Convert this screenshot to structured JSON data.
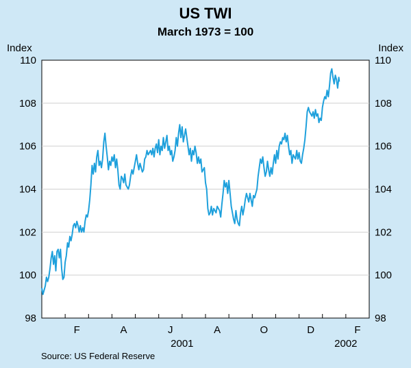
{
  "chart_data": {
    "type": "line",
    "title": "US TWI",
    "subtitle": "March 1973 = 100",
    "ylabel_left": "Index",
    "ylabel_right": "Index",
    "ylim": [
      98,
      110
    ],
    "yticks": [
      98,
      100,
      102,
      104,
      106,
      108,
      110
    ],
    "xlim": [
      0,
      14
    ],
    "months": [
      {
        "label": "F",
        "x": 1.5
      },
      {
        "label": "A",
        "x": 3.5
      },
      {
        "label": "J",
        "x": 5.5
      },
      {
        "label": "A",
        "x": 7.5
      },
      {
        "label": "O",
        "x": 9.5
      },
      {
        "label": "D",
        "x": 11.5
      },
      {
        "label": "F",
        "x": 13.5
      }
    ],
    "years": [
      {
        "label": "2001",
        "x": 6.0
      },
      {
        "label": "2002",
        "x": 13.0
      }
    ],
    "source": "Source: US Federal Reserve",
    "series": [
      {
        "name": "US TWI",
        "color": "#1ea0dc",
        "points": [
          [
            0.0,
            99.4
          ],
          [
            0.05,
            99.1
          ],
          [
            0.1,
            99.3
          ],
          [
            0.15,
            99.5
          ],
          [
            0.2,
            99.9
          ],
          [
            0.25,
            99.7
          ],
          [
            0.3,
            99.9
          ],
          [
            0.35,
            100.3
          ],
          [
            0.4,
            100.8
          ],
          [
            0.45,
            101.1
          ],
          [
            0.5,
            100.5
          ],
          [
            0.55,
            100.9
          ],
          [
            0.6,
            100.2
          ],
          [
            0.65,
            101.1
          ],
          [
            0.7,
            101.2
          ],
          [
            0.75,
            100.8
          ],
          [
            0.8,
            101.2
          ],
          [
            0.85,
            100.3
          ],
          [
            0.9,
            99.8
          ],
          [
            0.95,
            99.9
          ],
          [
            1.0,
            100.6
          ],
          [
            1.05,
            100.9
          ],
          [
            1.1,
            101.5
          ],
          [
            1.15,
            101.3
          ],
          [
            1.2,
            101.8
          ],
          [
            1.25,
            101.6
          ],
          [
            1.3,
            101.9
          ],
          [
            1.35,
            102.3
          ],
          [
            1.4,
            102.4
          ],
          [
            1.45,
            102.2
          ],
          [
            1.5,
            102.5
          ],
          [
            1.55,
            102.3
          ],
          [
            1.6,
            102.0
          ],
          [
            1.65,
            102.3
          ],
          [
            1.7,
            102.0
          ],
          [
            1.75,
            102.2
          ],
          [
            1.8,
            102.0
          ],
          [
            1.85,
            102.5
          ],
          [
            1.9,
            102.8
          ],
          [
            1.95,
            102.7
          ],
          [
            2.0,
            103.0
          ],
          [
            2.05,
            103.5
          ],
          [
            2.1,
            104.2
          ],
          [
            2.15,
            105.1
          ],
          [
            2.2,
            104.7
          ],
          [
            2.25,
            105.2
          ],
          [
            2.3,
            104.8
          ],
          [
            2.35,
            105.5
          ],
          [
            2.4,
            105.8
          ],
          [
            2.45,
            105.1
          ],
          [
            2.5,
            105.3
          ],
          [
            2.55,
            105.0
          ],
          [
            2.6,
            105.4
          ],
          [
            2.65,
            106.2
          ],
          [
            2.7,
            106.6
          ],
          [
            2.75,
            106.0
          ],
          [
            2.8,
            105.5
          ],
          [
            2.85,
            104.9
          ],
          [
            2.9,
            105.3
          ],
          [
            2.95,
            105.1
          ],
          [
            3.0,
            105.5
          ],
          [
            3.05,
            105.3
          ],
          [
            3.1,
            105.6
          ],
          [
            3.15,
            105.0
          ],
          [
            3.2,
            105.4
          ],
          [
            3.25,
            104.9
          ],
          [
            3.3,
            104.2
          ],
          [
            3.35,
            104.0
          ],
          [
            3.4,
            104.6
          ],
          [
            3.45,
            104.5
          ],
          [
            3.5,
            104.3
          ],
          [
            3.55,
            104.7
          ],
          [
            3.6,
            104.2
          ],
          [
            3.65,
            104.1
          ],
          [
            3.7,
            104.0
          ],
          [
            3.75,
            104.2
          ],
          [
            3.8,
            104.6
          ],
          [
            3.85,
            104.9
          ],
          [
            3.9,
            104.7
          ],
          [
            3.95,
            105.0
          ],
          [
            4.0,
            105.3
          ],
          [
            4.05,
            105.6
          ],
          [
            4.1,
            105.2
          ],
          [
            4.15,
            104.9
          ],
          [
            4.2,
            105.2
          ],
          [
            4.25,
            105.0
          ],
          [
            4.3,
            104.8
          ],
          [
            4.35,
            104.9
          ],
          [
            4.4,
            105.4
          ],
          [
            4.45,
            105.5
          ],
          [
            4.5,
            105.8
          ],
          [
            4.55,
            105.6
          ],
          [
            4.6,
            105.7
          ],
          [
            4.65,
            105.8
          ],
          [
            4.7,
            105.6
          ],
          [
            4.75,
            105.9
          ],
          [
            4.8,
            105.5
          ],
          [
            4.85,
            105.9
          ],
          [
            4.9,
            106.1
          ],
          [
            4.95,
            105.7
          ],
          [
            5.0,
            106.3
          ],
          [
            5.05,
            105.6
          ],
          [
            5.1,
            106.0
          ],
          [
            5.15,
            105.8
          ],
          [
            5.2,
            106.4
          ],
          [
            5.25,
            105.9
          ],
          [
            5.3,
            106.2
          ],
          [
            5.35,
            106.5
          ],
          [
            5.4,
            105.8
          ],
          [
            5.45,
            106.0
          ],
          [
            5.5,
            105.6
          ],
          [
            5.55,
            105.8
          ],
          [
            5.6,
            105.3
          ],
          [
            5.65,
            105.5
          ],
          [
            5.7,
            105.8
          ],
          [
            5.75,
            106.4
          ],
          [
            5.8,
            106.0
          ],
          [
            5.85,
            106.6
          ],
          [
            5.9,
            107.0
          ],
          [
            5.95,
            106.4
          ],
          [
            6.0,
            106.9
          ],
          [
            6.05,
            106.2
          ],
          [
            6.1,
            106.5
          ],
          [
            6.15,
            106.8
          ],
          [
            6.2,
            106.4
          ],
          [
            6.25,
            106.0
          ],
          [
            6.3,
            105.6
          ],
          [
            6.35,
            105.9
          ],
          [
            6.4,
            105.3
          ],
          [
            6.45,
            105.8
          ],
          [
            6.5,
            105.6
          ],
          [
            6.55,
            106.0
          ],
          [
            6.6,
            105.7
          ],
          [
            6.65,
            105.2
          ],
          [
            6.7,
            105.5
          ],
          [
            6.75,
            105.2
          ],
          [
            6.8,
            105.4
          ],
          [
            6.85,
            104.8
          ],
          [
            6.9,
            104.9
          ],
          [
            6.95,
            105.0
          ],
          [
            7.0,
            104.3
          ],
          [
            7.05,
            104.0
          ],
          [
            7.1,
            103.1
          ],
          [
            7.15,
            102.8
          ],
          [
            7.2,
            102.9
          ],
          [
            7.25,
            103.2
          ],
          [
            7.3,
            102.8
          ],
          [
            7.35,
            103.1
          ],
          [
            7.4,
            103.0
          ],
          [
            7.45,
            102.9
          ],
          [
            7.5,
            103.2
          ],
          [
            7.55,
            103.1
          ],
          [
            7.6,
            103.0
          ],
          [
            7.65,
            102.7
          ],
          [
            7.7,
            103.3
          ],
          [
            7.75,
            103.8
          ],
          [
            7.8,
            104.4
          ],
          [
            7.85,
            104.1
          ],
          [
            7.9,
            104.3
          ],
          [
            7.95,
            103.8
          ],
          [
            8.0,
            104.4
          ],
          [
            8.05,
            103.8
          ],
          [
            8.1,
            103.2
          ],
          [
            8.15,
            102.9
          ],
          [
            8.2,
            102.6
          ],
          [
            8.25,
            102.4
          ],
          [
            8.3,
            103.0
          ],
          [
            8.35,
            102.6
          ],
          [
            8.4,
            102.4
          ],
          [
            8.45,
            102.3
          ],
          [
            8.5,
            102.9
          ],
          [
            8.55,
            103.2
          ],
          [
            8.6,
            102.8
          ],
          [
            8.65,
            103.1
          ],
          [
            8.7,
            103.5
          ],
          [
            8.75,
            103.8
          ],
          [
            8.8,
            103.6
          ],
          [
            8.85,
            103.4
          ],
          [
            8.9,
            103.8
          ],
          [
            8.95,
            103.5
          ],
          [
            9.0,
            103.2
          ],
          [
            9.05,
            103.7
          ],
          [
            9.1,
            103.6
          ],
          [
            9.15,
            103.8
          ],
          [
            9.2,
            104.0
          ],
          [
            9.25,
            104.6
          ],
          [
            9.3,
            105.0
          ],
          [
            9.35,
            105.4
          ],
          [
            9.4,
            105.2
          ],
          [
            9.45,
            105.5
          ],
          [
            9.5,
            105.0
          ],
          [
            9.55,
            104.6
          ],
          [
            9.6,
            104.8
          ],
          [
            9.65,
            105.3
          ],
          [
            9.7,
            104.9
          ],
          [
            9.75,
            104.6
          ],
          [
            9.8,
            105.0
          ],
          [
            9.85,
            104.7
          ],
          [
            9.9,
            105.2
          ],
          [
            9.95,
            105.6
          ],
          [
            10.0,
            105.2
          ],
          [
            10.05,
            105.8
          ],
          [
            10.1,
            105.4
          ],
          [
            10.15,
            106.0
          ],
          [
            10.2,
            106.2
          ],
          [
            10.25,
            106.1
          ],
          [
            10.3,
            106.4
          ],
          [
            10.35,
            106.3
          ],
          [
            10.4,
            106.6
          ],
          [
            10.45,
            106.2
          ],
          [
            10.5,
            106.5
          ],
          [
            10.55,
            106.0
          ],
          [
            10.6,
            105.6
          ],
          [
            10.65,
            105.8
          ],
          [
            10.7,
            105.2
          ],
          [
            10.75,
            105.6
          ],
          [
            10.8,
            105.5
          ],
          [
            10.85,
            105.4
          ],
          [
            10.9,
            105.8
          ],
          [
            10.95,
            105.4
          ],
          [
            11.0,
            105.7
          ],
          [
            11.05,
            105.3
          ],
          [
            11.1,
            105.2
          ],
          [
            11.15,
            105.6
          ],
          [
            11.2,
            105.9
          ],
          [
            11.25,
            106.3
          ],
          [
            11.3,
            106.9
          ],
          [
            11.35,
            107.6
          ],
          [
            11.4,
            107.8
          ],
          [
            11.45,
            107.6
          ],
          [
            11.5,
            107.5
          ],
          [
            11.55,
            107.4
          ],
          [
            11.6,
            107.6
          ],
          [
            11.65,
            107.3
          ],
          [
            11.7,
            107.7
          ],
          [
            11.75,
            107.4
          ],
          [
            11.8,
            107.5
          ],
          [
            11.85,
            107.1
          ],
          [
            11.9,
            107.3
          ],
          [
            11.95,
            107.2
          ],
          [
            12.0,
            107.8
          ],
          [
            12.05,
            108.1
          ],
          [
            12.1,
            108.3
          ],
          [
            12.15,
            108.2
          ],
          [
            12.2,
            108.6
          ],
          [
            12.25,
            108.3
          ],
          [
            12.3,
            108.8
          ],
          [
            12.35,
            109.4
          ],
          [
            12.4,
            109.6
          ],
          [
            12.45,
            109.2
          ],
          [
            12.5,
            108.9
          ],
          [
            12.55,
            109.3
          ],
          [
            12.6,
            109.1
          ],
          [
            12.65,
            108.7
          ],
          [
            12.7,
            109.2
          ],
          [
            12.72,
            109.0
          ]
        ]
      }
    ]
  }
}
